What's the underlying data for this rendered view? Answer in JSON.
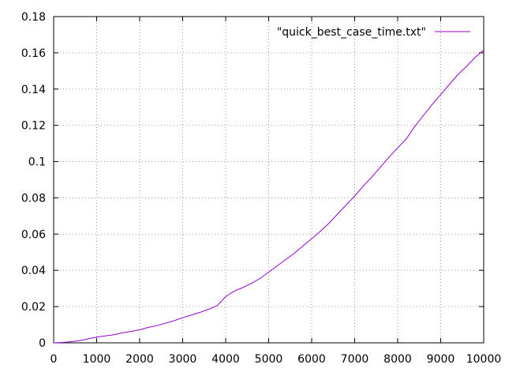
{
  "chart_data": {
    "type": "line",
    "title": "",
    "xlabel": "",
    "ylabel": "",
    "xlim": [
      0,
      10000
    ],
    "ylim": [
      0,
      0.18
    ],
    "grid": true,
    "legend_position": "top-right",
    "x_ticks": [
      "0",
      "1000",
      "2000",
      "3000",
      "4000",
      "5000",
      "6000",
      "7000",
      "8000",
      "9000",
      "10000"
    ],
    "y_ticks": [
      "0",
      "0.02",
      "0.04",
      "0.06",
      "0.08",
      "0.1",
      "0.12",
      "0.14",
      "0.16",
      "0.18"
    ],
    "series": [
      {
        "name": "\"quick_best_case_time.txt\"",
        "color": "#9400d3",
        "x": [
          0,
          200,
          400,
          600,
          800,
          1000,
          1200,
          1400,
          1600,
          1800,
          2000,
          2200,
          2400,
          2600,
          2800,
          3000,
          3200,
          3400,
          3600,
          3800,
          4000,
          4200,
          4400,
          4600,
          4800,
          5000,
          5200,
          5400,
          5600,
          5800,
          6000,
          6200,
          6400,
          6600,
          6800,
          7000,
          7200,
          7400,
          7600,
          7800,
          8000,
          8200,
          8400,
          8600,
          8800,
          9000,
          9200,
          9400,
          9600,
          9800,
          10000
        ],
        "y": [
          0,
          0.0002,
          0.0006,
          0.0012,
          0.0022,
          0.0032,
          0.0038,
          0.0045,
          0.0055,
          0.0063,
          0.0072,
          0.0085,
          0.0095,
          0.0108,
          0.0122,
          0.0138,
          0.0153,
          0.0168,
          0.0185,
          0.0205,
          0.0255,
          0.0285,
          0.0305,
          0.0328,
          0.0355,
          0.039,
          0.0425,
          0.046,
          0.0495,
          0.0535,
          0.0575,
          0.0615,
          0.066,
          0.071,
          0.076,
          0.081,
          0.0865,
          0.0915,
          0.097,
          0.1025,
          0.1075,
          0.1125,
          0.1195,
          0.1255,
          0.1315,
          0.137,
          0.1425,
          0.148,
          0.1525,
          0.1575,
          0.1615
        ]
      }
    ]
  }
}
